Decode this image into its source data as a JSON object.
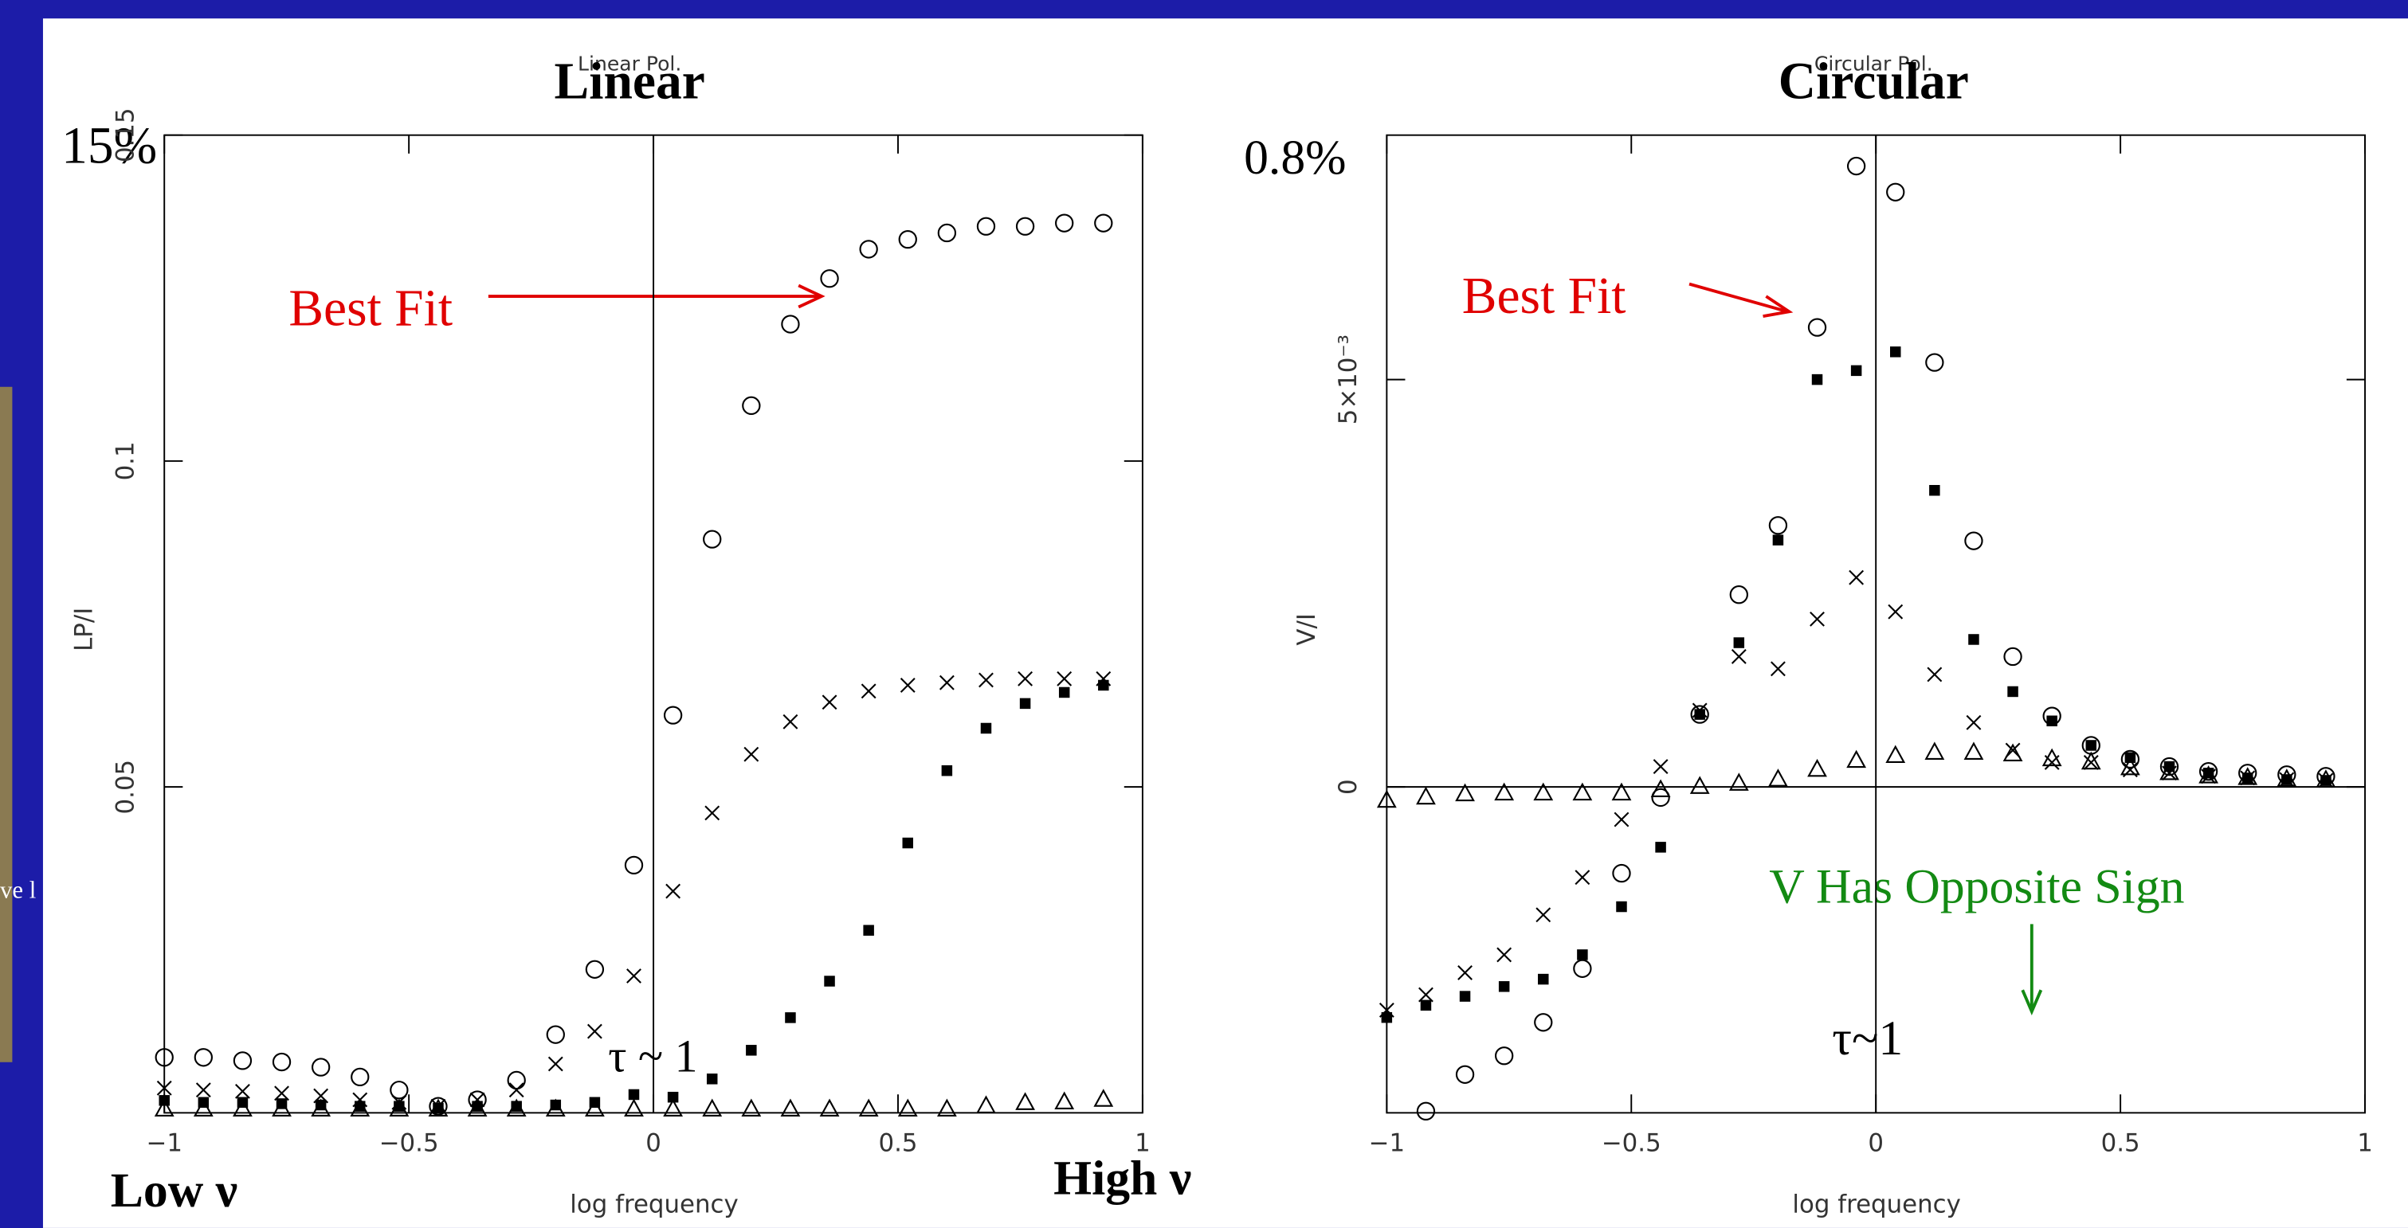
{
  "slide": {
    "fragment_text": "ve l"
  },
  "chart_data": [
    {
      "type": "scatter",
      "title": "Linear",
      "subtitle": "Linear Pol.",
      "xlabel": "log frequency",
      "ylabel": "LP/I",
      "scale_label": "15%",
      "annotations": [
        {
          "text": "Best Fit",
          "color": "#e00000"
        },
        {
          "text": "τ ~ 1",
          "color": "#000000"
        },
        {
          "text": "Low ν",
          "color": "#000000"
        },
        {
          "text": "High ν",
          "color": "#000000"
        }
      ],
      "x": [
        -1,
        -0.92,
        -0.84,
        -0.76,
        -0.68,
        -0.6,
        -0.52,
        -0.44,
        -0.36,
        -0.28,
        -0.2,
        -0.12,
        -0.04,
        0.04,
        0.12,
        0.2,
        0.28,
        0.36,
        0.44,
        0.52,
        0.6,
        0.68,
        0.76,
        0.84,
        0.92
      ],
      "xlim": [
        -1,
        1
      ],
      "xticks": [
        {
          "value": -1,
          "label": "−1"
        },
        {
          "value": -0.5,
          "label": "−0.5"
        },
        0,
        0.5,
        1
      ],
      "ylim": [
        0,
        0.15
      ],
      "yticks": [
        0.05,
        0.1,
        0.15
      ],
      "reference_lines": {
        "x": [
          0
        ]
      },
      "series": [
        {
          "marker": "circle",
          "color": "#000000",
          "values": [
            0.0085,
            0.0085,
            0.008,
            0.0078,
            0.007,
            0.0055,
            0.0035,
            0.001,
            0.002,
            0.005,
            0.012,
            0.022,
            0.038,
            0.061,
            0.088,
            0.1085,
            0.121,
            0.128,
            0.1325,
            0.134,
            0.135,
            0.136,
            0.136,
            0.1365,
            0.1365
          ]
        },
        {
          "marker": "cross",
          "color": "#000000",
          "values": [
            0.0038,
            0.0035,
            0.0033,
            0.003,
            0.0026,
            0.002,
            0.0016,
            0.001,
            0.002,
            0.0035,
            0.0075,
            0.0125,
            0.021,
            0.034,
            0.046,
            0.055,
            0.06,
            0.063,
            0.0647,
            0.0656,
            0.066,
            0.0664,
            0.0666,
            0.0666,
            0.0666
          ]
        },
        {
          "marker": "square",
          "color": "#000000",
          "values": [
            0.0019,
            0.0016,
            0.0016,
            0.0014,
            0.0012,
            0.001,
            0.001,
            0.0007,
            0.001,
            0.001,
            0.0012,
            0.0016,
            0.0028,
            0.0024,
            0.0052,
            0.0096,
            0.0146,
            0.0202,
            0.028,
            0.0414,
            0.0525,
            0.059,
            0.0628,
            0.0645,
            0.0656
          ]
        },
        {
          "marker": "triangle",
          "color": "#000000",
          "values": [
            0.0005,
            0.0005,
            0.0005,
            0.0005,
            0.0005,
            0.0005,
            0.0005,
            0.0005,
            0.0005,
            0.0005,
            0.0005,
            0.0005,
            0.0005,
            0.0005,
            0.0005,
            0.0005,
            0.0005,
            0.0005,
            0.0005,
            0.0005,
            0.0005,
            0.001,
            0.0015,
            0.0016,
            0.002
          ]
        }
      ]
    },
    {
      "type": "scatter",
      "title": "Circular",
      "subtitle": "Circular Pol.",
      "xlabel": "log frequency",
      "ylabel": "V/I",
      "scale_label": "0.8%",
      "annotations": [
        {
          "text": "Best Fit",
          "color": "#e00000"
        },
        {
          "text": "τ~1",
          "color": "#000000"
        },
        {
          "text": "V Has Opposite Sign",
          "color": "#138a13"
        }
      ],
      "x": [
        -1,
        -0.92,
        -0.84,
        -0.76,
        -0.68,
        -0.6,
        -0.52,
        -0.44,
        -0.36,
        -0.28,
        -0.2,
        -0.12,
        -0.04,
        0.04,
        0.12,
        0.2,
        0.28,
        0.36,
        0.44,
        0.52,
        0.6,
        0.68,
        0.76,
        0.84,
        0.92
      ],
      "xlim": [
        -1,
        1
      ],
      "xticks": [
        {
          "value": -1,
          "label": "−1"
        },
        {
          "value": -0.5,
          "label": "−0.5"
        },
        0,
        0.5,
        1
      ],
      "ylim": [
        -0.004,
        0.008
      ],
      "yticks": [
        0,
        {
          "value": 0.005,
          "label": "5×10⁻³"
        }
      ],
      "reference_lines": {
        "x": [
          0
        ],
        "y": [
          0
        ]
      },
      "series": [
        {
          "marker": "circle",
          "color": "#000000",
          "values": [
            null,
            -0.00398,
            -0.00353,
            -0.0033,
            -0.00289,
            -0.00223,
            -0.00106,
            -0.00013,
            0.00089,
            0.00236,
            0.00321,
            0.00564,
            0.00762,
            0.0073,
            0.00521,
            0.00302,
            0.0016,
            0.00087,
            0.00051,
            0.00034,
            0.00025,
            0.00019,
            0.00017,
            0.00015,
            0.00013
          ]
        },
        {
          "marker": "cross",
          "color": "#000000",
          "values": [
            -0.00274,
            -0.00255,
            -0.00228,
            -0.00206,
            -0.00157,
            -0.00111,
            -0.0004,
            0.00025,
            0.00094,
            0.0016,
            0.00145,
            0.00206,
            0.00257,
            0.00215,
            0.00138,
            0.00079,
            0.00045,
            0.0003,
            0.0003,
            0.00021,
            0.00017,
            0.00013,
            0.00011,
            9e-05,
            8e-05
          ]
        },
        {
          "marker": "square",
          "color": "#000000",
          "values": [
            -0.00283,
            -0.00268,
            -0.00257,
            -0.00245,
            -0.00236,
            -0.00206,
            -0.00147,
            -0.00074,
            0.00089,
            0.00177,
            0.00303,
            0.005,
            0.00511,
            0.00534,
            0.00364,
            0.00181,
            0.00117,
            0.00081,
            0.00051,
            0.00036,
            0.00025,
            0.00017,
            0.00011,
            9e-05,
            8e-05
          ]
        },
        {
          "marker": "triangle",
          "color": "#000000",
          "values": [
            -0.00017,
            -0.00013,
            -9e-05,
            -8e-05,
            -8e-05,
            -8e-05,
            -8e-05,
            -4e-05,
            0,
            4e-05,
            9e-05,
            0.00021,
            0.00032,
            0.00038,
            0.00042,
            0.00042,
            0.0004,
            0.00034,
            0.0003,
            0.00023,
            0.00017,
            0.00013,
            0.00011,
            9e-05,
            8e-05
          ]
        }
      ]
    }
  ]
}
